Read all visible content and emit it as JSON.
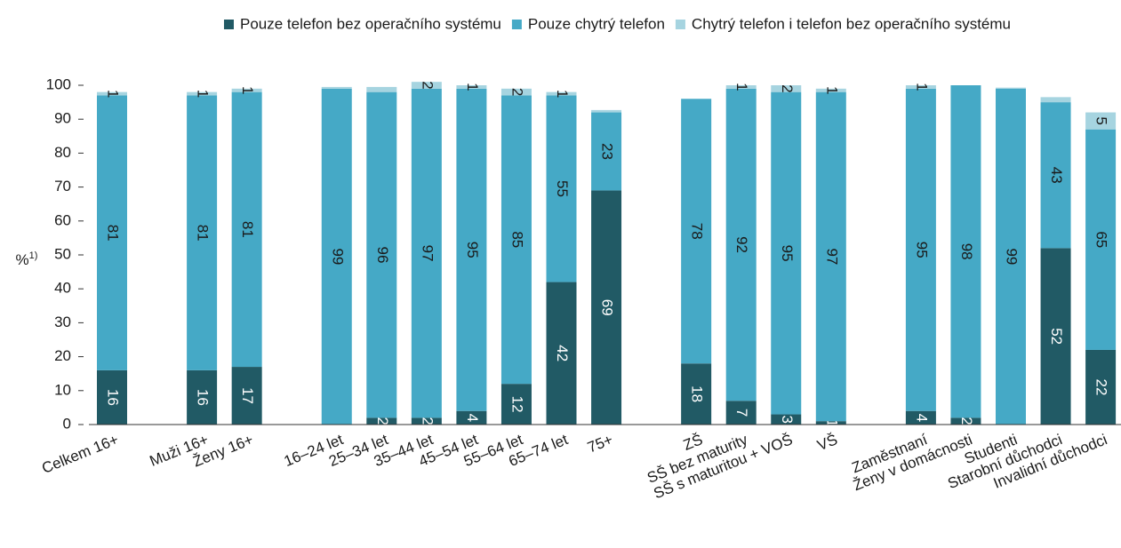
{
  "chart_data": {
    "type": "stacked_bar",
    "ylabel": "%",
    "ylabel_note": "1)",
    "categories": [
      "Celkem 16+",
      null,
      "Muži 16+",
      "Ženy 16+",
      null,
      "16–24 let",
      "25–34 let",
      "35–44 let",
      "45–54 let",
      "55–64 let",
      "65–74 let",
      "75+",
      null,
      "ZŠ",
      "SŠ bez maturity",
      "SŠ s maturitou + VOŠ",
      "VŠ",
      null,
      "Zaměstnaní",
      "Ženy v domácnosti",
      "Studenti",
      "Starobní důchodci",
      "Invalidní důchodci"
    ],
    "series": [
      {
        "name": "Pouze telefon bez operačního systému",
        "color": "#215a65",
        "label_color": "#ffffff",
        "values": [
          16,
          null,
          16,
          17,
          null,
          0,
          2,
          2,
          4,
          12,
          42,
          69,
          null,
          18,
          7,
          3,
          1,
          null,
          4,
          2,
          0,
          52,
          22
        ],
        "value_labels": [
          "16",
          null,
          "16",
          "17",
          null,
          null,
          "2",
          "2",
          "4",
          "12",
          "42",
          "69",
          null,
          "18",
          "7",
          "3",
          "1",
          null,
          "4",
          "2",
          null,
          "52",
          "22"
        ]
      },
      {
        "name": "Pouze chytrý telefon",
        "color": "#45a9c6",
        "label_color": "#1a1a1a",
        "values": [
          81,
          null,
          81,
          81,
          null,
          99,
          96,
          97,
          95,
          85,
          55,
          23,
          null,
          78,
          92,
          95,
          97,
          null,
          95,
          98,
          99,
          43,
          65
        ],
        "value_labels": [
          "81",
          null,
          "81",
          "81",
          null,
          "99",
          "96",
          "97",
          "95",
          "85",
          "55",
          "23",
          null,
          "78",
          "92",
          "95",
          "97",
          null,
          "95",
          "98",
          "99",
          "43",
          "65"
        ]
      },
      {
        "name": "Chytrý telefon i telefon bez operačního systému",
        "color": "#a6d4e0",
        "label_color": "#1a1a1a",
        "values": [
          1,
          null,
          1,
          1,
          null,
          0.5,
          1.5,
          2,
          1,
          2,
          1,
          0.7,
          null,
          0,
          1,
          2,
          1,
          null,
          1,
          0,
          0.3,
          1.5,
          5
        ],
        "value_labels": [
          "1",
          null,
          "1",
          "1",
          null,
          null,
          null,
          "2",
          "1",
          "2",
          "1",
          null,
          null,
          null,
          "1",
          "2",
          "1",
          null,
          "1",
          null,
          null,
          null,
          "5"
        ]
      }
    ],
    "ylim": [
      0,
      100
    ],
    "yticks": [
      0,
      10,
      20,
      30,
      40,
      50,
      60,
      70,
      80,
      90,
      100
    ],
    "grid": false
  }
}
